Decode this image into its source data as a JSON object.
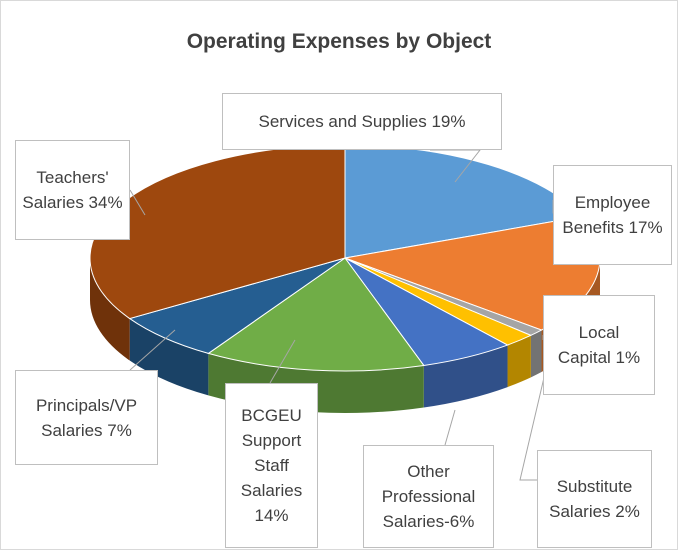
{
  "chart_data": {
    "type": "pie3d",
    "title": "Operating Expenses by Object",
    "categories": [
      "Services and Supplies 19%",
      "Employee Benefits 17%",
      "Local Capital 1%",
      "Substitute Salaries 2%",
      "Other Professional Salaries-6%",
      "BCGEU Support Staff Salaries 14%",
      "Principals/VP Salaries 7%",
      "Teachers' Salaries 34%"
    ],
    "values": [
      19,
      17,
      1,
      2,
      6,
      14,
      7,
      34
    ],
    "colors": [
      "#5b9bd5",
      "#ed7d31",
      "#a5a5a5",
      "#ffc000",
      "#4472c4",
      "#70ad47",
      "#255e91",
      "#9e480e"
    ]
  }
}
